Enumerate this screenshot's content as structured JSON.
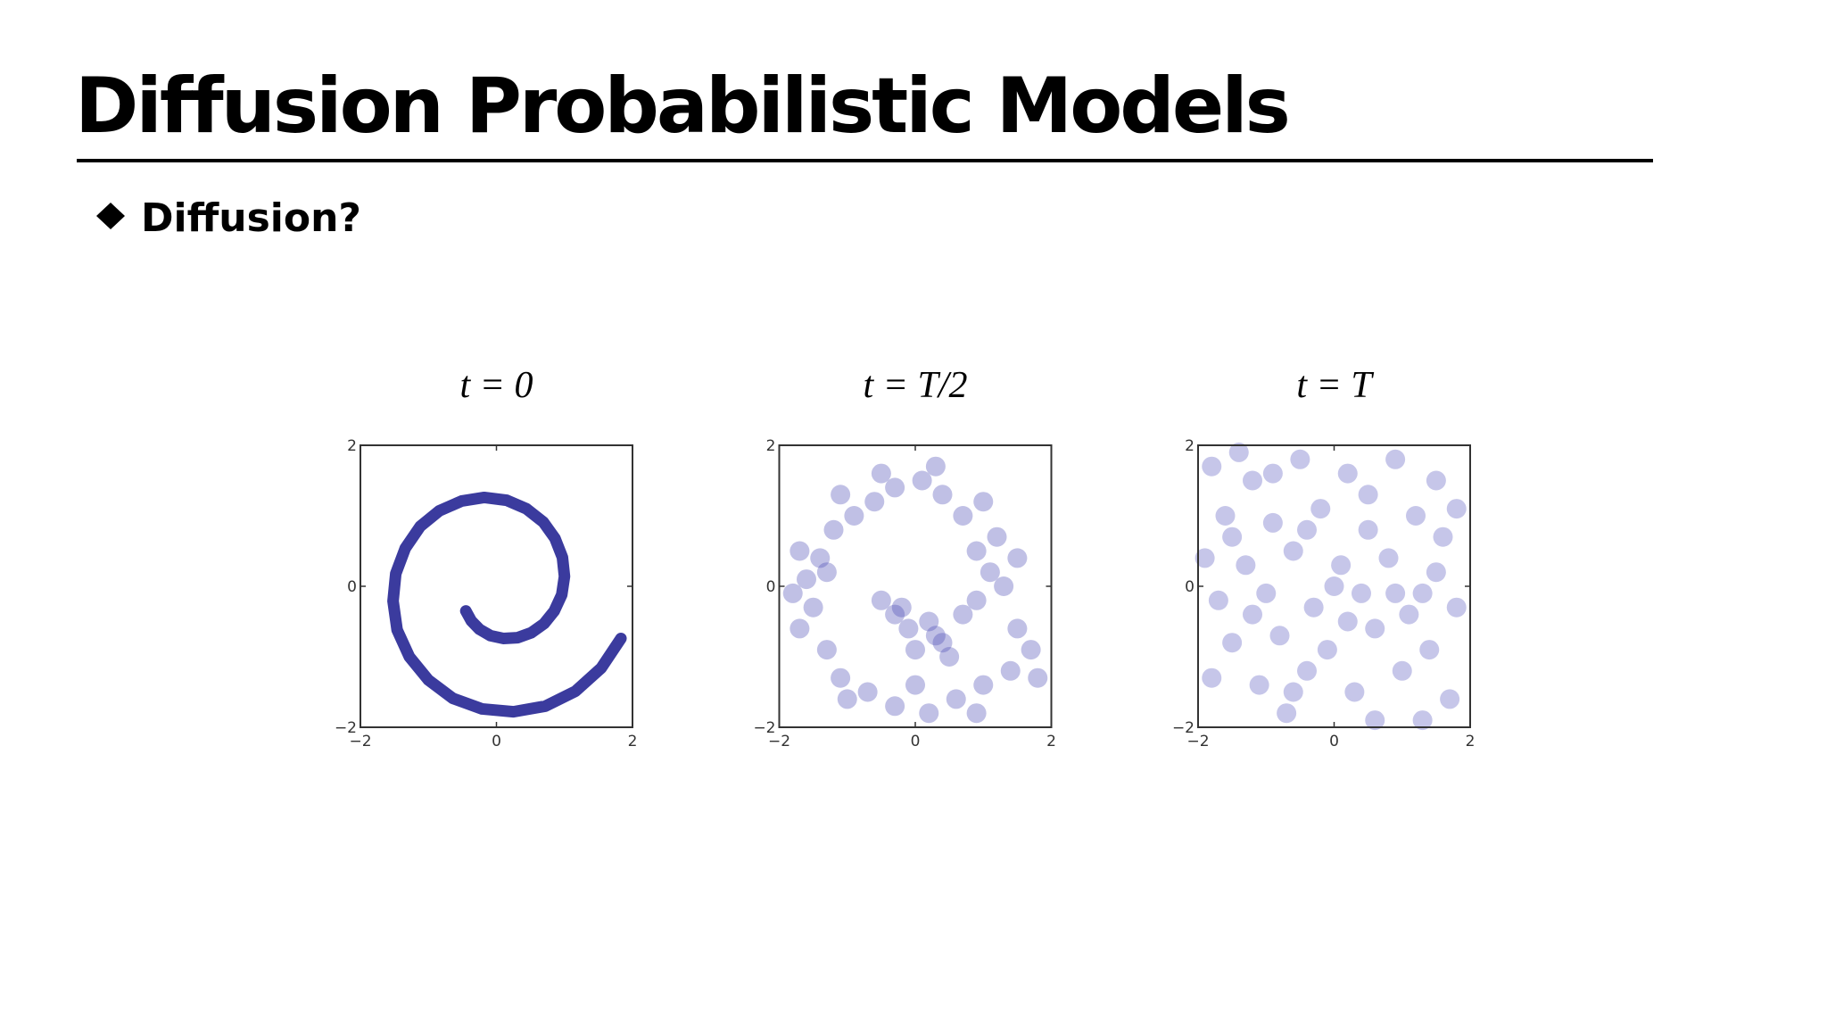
{
  "header": {
    "title": "Diffusion Probabilistic Models"
  },
  "bullet": {
    "text": "Diffusion?"
  },
  "chart_data": [
    {
      "type": "line",
      "title": "t = 0",
      "color": "#2a2a96",
      "x": [
        -0.45,
        -0.37,
        -0.25,
        -0.09,
        0.1,
        0.31,
        0.51,
        0.7,
        0.85,
        0.96,
        1.0,
        0.97,
        0.86,
        0.69,
        0.44,
        0.15,
        -0.18,
        -0.51,
        -0.84,
        -1.12,
        -1.34,
        -1.48,
        -1.52,
        -1.46,
        -1.28,
        -1.0,
        -0.64,
        -0.21,
        0.25,
        0.72,
        1.16,
        1.54,
        1.83
      ],
      "values": [
        -0.35,
        -0.49,
        -0.61,
        -0.7,
        -0.74,
        -0.73,
        -0.66,
        -0.53,
        -0.35,
        -0.12,
        0.14,
        0.41,
        0.68,
        0.91,
        1.1,
        1.22,
        1.26,
        1.21,
        1.07,
        0.85,
        0.54,
        0.18,
        -0.21,
        -0.62,
        -1.0,
        -1.33,
        -1.59,
        -1.74,
        -1.78,
        -1.7,
        -1.49,
        -1.16,
        -0.74
      ],
      "xlim": [
        -2,
        2
      ],
      "ylim": [
        -2,
        2
      ],
      "xticks": [
        {
          "value": -2,
          "label": "−2"
        },
        0,
        2
      ],
      "yticks": [
        {
          "value": -2,
          "label": "−2"
        },
        0,
        2
      ]
    },
    {
      "type": "scatter",
      "title": "t = T/2",
      "color": "#4b4bb4",
      "x": [
        -0.3,
        -0.1,
        0.2,
        0.4,
        0.7,
        0.9,
        1.1,
        0.9,
        1.2,
        0.7,
        0.4,
        0.1,
        -0.3,
        -0.6,
        -0.9,
        -1.2,
        -1.4,
        -1.6,
        -1.5,
        -1.7,
        -1.3,
        -1.1,
        -0.7,
        -0.3,
        0.2,
        0.6,
        1.0,
        1.4,
        1.7,
        1.5,
        -0.5,
        0.0,
        0.5,
        1.3,
        1.5,
        1.0,
        0.3,
        -0.5,
        -1.1,
        -1.7,
        -1.8,
        -1.0,
        0.0,
        0.9,
        1.8,
        -0.2,
        0.3,
        -1.3
      ],
      "values": [
        -0.4,
        -0.6,
        -0.5,
        -0.8,
        -0.4,
        -0.2,
        0.2,
        0.5,
        0.7,
        1.0,
        1.3,
        1.5,
        1.4,
        1.2,
        1.0,
        0.8,
        0.4,
        0.1,
        -0.3,
        -0.6,
        -0.9,
        -1.3,
        -1.5,
        -1.7,
        -1.8,
        -1.6,
        -1.4,
        -1.2,
        -0.9,
        -0.6,
        -0.2,
        -0.9,
        -1.0,
        0.0,
        0.4,
        1.2,
        1.7,
        1.6,
        1.3,
        0.5,
        -0.1,
        -1.6,
        -1.4,
        -1.8,
        -1.3,
        -0.3,
        -0.7,
        0.2
      ],
      "xlim": [
        -2,
        2
      ],
      "ylim": [
        -2,
        2
      ],
      "xticks": [
        {
          "value": -2,
          "label": "−2"
        },
        0,
        2
      ],
      "yticks": [
        {
          "value": -2,
          "label": "−2"
        },
        0,
        2
      ]
    },
    {
      "type": "scatter",
      "title": "t = T",
      "color": "#5c5cc0",
      "x": [
        -1.8,
        -1.2,
        -0.5,
        0.2,
        0.9,
        1.5,
        1.8,
        -1.6,
        -0.9,
        -0.2,
        0.5,
        1.2,
        -1.9,
        -1.3,
        -0.6,
        0.1,
        0.8,
        1.5,
        -1.7,
        -1.0,
        -0.3,
        0.4,
        1.1,
        1.8,
        -1.5,
        -0.8,
        -0.1,
        0.6,
        1.4,
        -1.8,
        -1.1,
        -0.4,
        0.3,
        1.0,
        1.7,
        -0.7,
        0.6,
        1.3,
        -1.4,
        0.0,
        0.5,
        -0.9,
        1.6,
        -1.2,
        0.9,
        -0.4,
        0.2,
        1.3,
        -1.5,
        -0.6
      ],
      "values": [
        1.7,
        1.5,
        1.8,
        1.6,
        1.8,
        1.5,
        1.1,
        1.0,
        0.9,
        1.1,
        0.8,
        1.0,
        0.4,
        0.3,
        0.5,
        0.3,
        0.4,
        0.2,
        -0.2,
        -0.1,
        -0.3,
        -0.1,
        -0.4,
        -0.3,
        -0.8,
        -0.7,
        -0.9,
        -0.6,
        -0.9,
        -1.3,
        -1.4,
        -1.2,
        -1.5,
        -1.2,
        -1.6,
        -1.8,
        -1.9,
        -1.9,
        1.9,
        0.0,
        1.3,
        1.6,
        0.7,
        -0.4,
        -0.1,
        0.8,
        -0.5,
        -0.1,
        0.7,
        -1.5
      ],
      "xlim": [
        -2,
        2
      ],
      "ylim": [
        -2,
        2
      ],
      "xticks": [
        {
          "value": -2,
          "label": "−2"
        },
        0,
        2
      ],
      "yticks": [
        {
          "value": -2,
          "label": "−2"
        },
        0,
        2
      ]
    }
  ]
}
